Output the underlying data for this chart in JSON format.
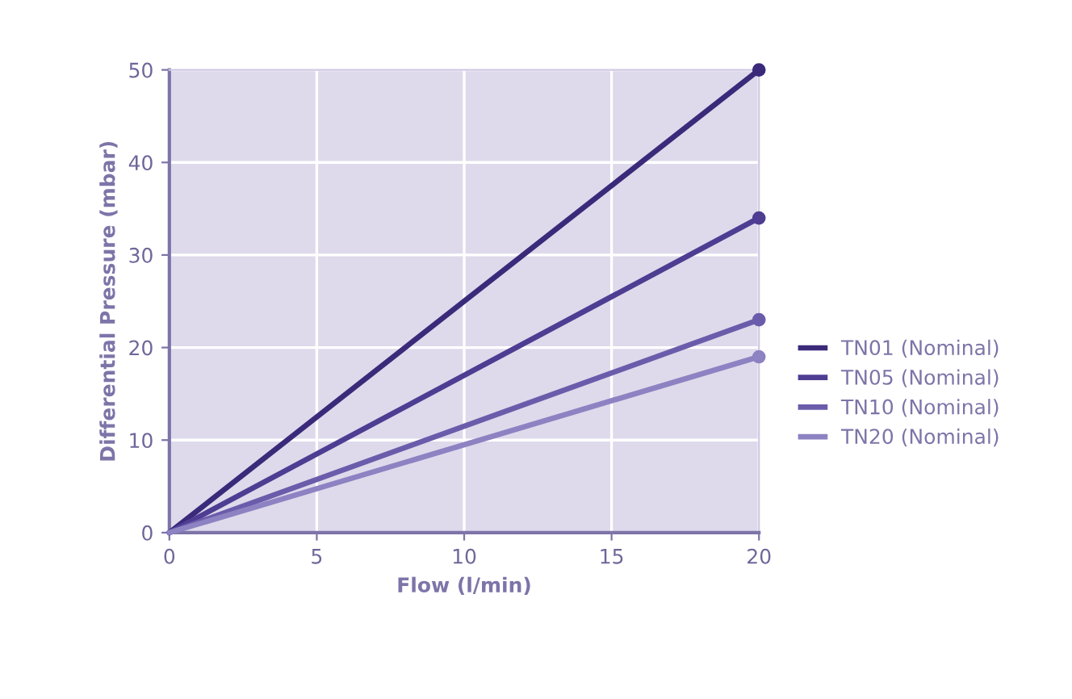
{
  "chart_data": {
    "type": "line",
    "xlabel": "Flow (l/min)",
    "ylabel": "Differential Pressure (mbar)",
    "x": [
      0,
      20
    ],
    "series": [
      {
        "name": "TN01 (Nominal)",
        "color": "#3b2a7a",
        "values": [
          0,
          50
        ]
      },
      {
        "name": "TN05 (Nominal)",
        "color": "#4e3d92",
        "values": [
          0,
          34
        ]
      },
      {
        "name": "TN10 (Nominal)",
        "color": "#6b5cab",
        "values": [
          0,
          23
        ]
      },
      {
        "name": "TN20 (Nominal)",
        "color": "#8d82c2",
        "values": [
          0,
          19
        ]
      }
    ],
    "xlim": [
      0,
      20
    ],
    "xticks": [
      0,
      5,
      10,
      15,
      20
    ],
    "ylim": [
      0,
      50
    ],
    "yticks": [
      0,
      10,
      20,
      30,
      40,
      50
    ],
    "grid": true,
    "legend": "right",
    "marker": "circle",
    "line_style": "solid"
  }
}
